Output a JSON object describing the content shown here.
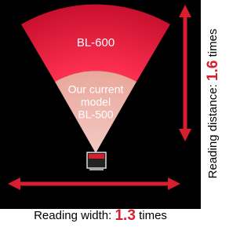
{
  "fan": {
    "outer_label": "BL-600",
    "inner_label": [
      "Our current",
      "model",
      "BL-500"
    ]
  },
  "width_caption": {
    "prefix": "Reading width: ",
    "number": "1.3",
    "suffix": " times"
  },
  "distance_caption": {
    "prefix": "Reading distance: ",
    "number": "1.6",
    "suffix": " times"
  }
}
